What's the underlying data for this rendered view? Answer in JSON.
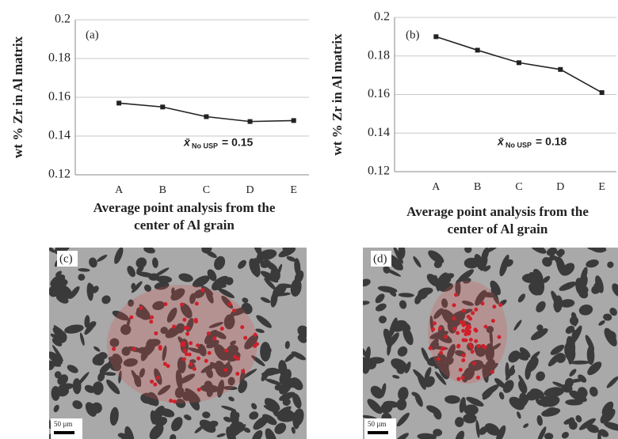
{
  "chart_data": [
    {
      "type": "line",
      "panel": "(a)",
      "ylabel": "wt % Zr in Al matrix",
      "xlabel_lines": [
        "Average point analysis from the",
        "center of Al grain"
      ],
      "categories": [
        "A",
        "B",
        "C",
        "D",
        "E"
      ],
      "series": [
        {
          "color": "#222222",
          "values": [
            0.157,
            0.155,
            0.15,
            0.1475,
            0.148
          ]
        }
      ],
      "ylim": [
        0.12,
        0.2
      ],
      "yticks": [
        0.12,
        0.14,
        0.16,
        0.18,
        0.2
      ],
      "grid": true,
      "annotation": {
        "symbol": "x̄",
        "subscript": "No USP",
        "text": "= 0.15"
      }
    },
    {
      "type": "line",
      "panel": "(b)",
      "ylabel": "wt % Zr in Al matrix",
      "xlabel_lines": [
        "Average point analysis from the",
        "center of Al grain"
      ],
      "categories": [
        "A",
        "B",
        "C",
        "D",
        "E"
      ],
      "series": [
        {
          "color": "#222222",
          "values": [
            0.19,
            0.183,
            0.1765,
            0.173,
            0.161
          ]
        }
      ],
      "ylim": [
        0.12,
        0.2
      ],
      "yticks": [
        0.12,
        0.14,
        0.16,
        0.18,
        0.2
      ],
      "grid": true,
      "annotation": {
        "symbol": "x̄",
        "subscript": "No USP",
        "text": "= 0.18"
      }
    }
  ],
  "micrographs": [
    {
      "label": "(c)",
      "scale_bar": "50 µm"
    },
    {
      "label": "(d)",
      "scale_bar": "50 µm"
    }
  ]
}
